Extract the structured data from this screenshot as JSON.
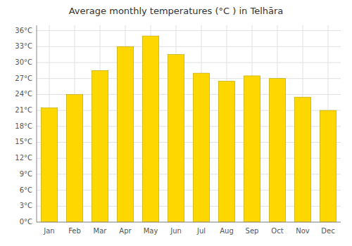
{
  "chart_data": {
    "type": "bar",
    "title": "Average monthly temperatures (°C ) in Telhāra",
    "categories": [
      "Jan",
      "Feb",
      "Mar",
      "Apr",
      "May",
      "Jun",
      "Jul",
      "Aug",
      "Sep",
      "Oct",
      "Nov",
      "Dec"
    ],
    "values": [
      21.5,
      24.0,
      28.5,
      33.0,
      35.0,
      31.5,
      28.0,
      26.5,
      27.5,
      27.0,
      23.5,
      21.0
    ],
    "color": "#FFD700",
    "ylim": [
      0,
      37
    ],
    "yticks": [
      {
        "value": 0,
        "label": "0°C"
      },
      {
        "value": 3,
        "label": "3°C"
      },
      {
        "value": 6,
        "label": "6°C"
      },
      {
        "value": 9,
        "label": "9°C"
      },
      {
        "value": 12,
        "label": "12°C"
      },
      {
        "value": 15,
        "label": "15°C"
      },
      {
        "value": 18,
        "label": "18°C"
      },
      {
        "value": 21,
        "label": "21°C"
      },
      {
        "value": 24,
        "label": "24°C"
      },
      {
        "value": 27,
        "label": "27°C"
      },
      {
        "value": 30,
        "label": "30°C"
      },
      {
        "value": 33,
        "label": "33°C"
      },
      {
        "value": 36,
        "label": "36°C"
      }
    ],
    "grid": true
  }
}
